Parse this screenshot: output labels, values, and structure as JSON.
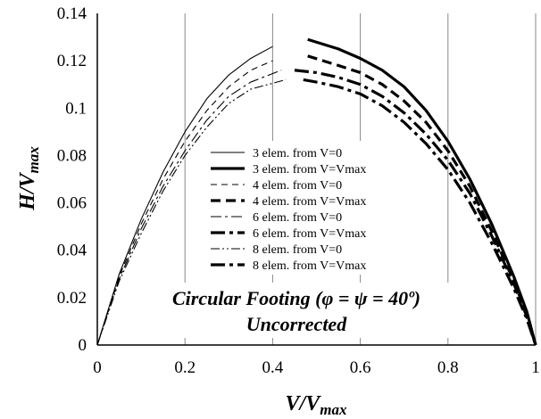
{
  "chart_data": {
    "type": "line",
    "xlabel": {
      "main": "V/V",
      "sub": "max"
    },
    "ylabel": {
      "main": "H/V",
      "sub": "max"
    },
    "xlim": [
      0,
      1
    ],
    "ylim": [
      0,
      0.14
    ],
    "x_ticks": [
      "0",
      "0.2",
      "0.4",
      "0.6",
      "0.8",
      "1"
    ],
    "y_ticks": [
      "0",
      "0.02",
      "0.04",
      "0.06",
      "0.08",
      "0.1",
      "0.12",
      "0.14"
    ],
    "grid": "vertical",
    "legend_position": "center",
    "annotations": [
      "Circular Footing (φ = ψ = 40º)",
      "Uncorrected"
    ],
    "series": [
      {
        "name": "3 elem. from V=0",
        "style": "solid",
        "weight": "thin",
        "x": [
          0,
          0.05,
          0.1,
          0.15,
          0.2,
          0.25,
          0.3,
          0.35,
          0.4
        ],
        "y": [
          0,
          0.03,
          0.053,
          0.073,
          0.09,
          0.104,
          0.114,
          0.121,
          0.126
        ]
      },
      {
        "name": "3 elem. from V=Vmax",
        "style": "solid",
        "weight": "thick",
        "x": [
          0.48,
          0.55,
          0.6,
          0.65,
          0.7,
          0.75,
          0.8,
          0.85,
          0.9,
          0.95,
          0.98,
          1.0
        ],
        "y": [
          0.129,
          0.125,
          0.121,
          0.116,
          0.109,
          0.099,
          0.086,
          0.07,
          0.051,
          0.029,
          0.014,
          0
        ]
      },
      {
        "name": "4 elem. from V=0",
        "style": "dashed",
        "weight": "thin",
        "x": [
          0,
          0.05,
          0.1,
          0.15,
          0.2,
          0.25,
          0.3,
          0.35,
          0.4
        ],
        "y": [
          0,
          0.029,
          0.051,
          0.07,
          0.086,
          0.099,
          0.109,
          0.116,
          0.12
        ]
      },
      {
        "name": "4 elem. from V=Vmax",
        "style": "dashed",
        "weight": "thick",
        "x": [
          0.48,
          0.55,
          0.6,
          0.65,
          0.7,
          0.75,
          0.8,
          0.85,
          0.9,
          0.95,
          0.98,
          1.0
        ],
        "y": [
          0.122,
          0.118,
          0.115,
          0.11,
          0.103,
          0.094,
          0.082,
          0.067,
          0.048,
          0.027,
          0.013,
          0
        ]
      },
      {
        "name": "6 elem. from V=0",
        "style": "dashdot",
        "weight": "thin",
        "x": [
          0,
          0.05,
          0.1,
          0.15,
          0.2,
          0.25,
          0.3,
          0.35,
          0.42
        ],
        "y": [
          0,
          0.028,
          0.049,
          0.067,
          0.082,
          0.095,
          0.105,
          0.111,
          0.116
        ]
      },
      {
        "name": "6 elem. from V=Vmax",
        "style": "dashdot",
        "weight": "thick",
        "x": [
          0.45,
          0.5,
          0.55,
          0.6,
          0.65,
          0.7,
          0.75,
          0.8,
          0.85,
          0.9,
          0.95,
          0.98,
          1.0
        ],
        "y": [
          0.116,
          0.115,
          0.113,
          0.11,
          0.105,
          0.098,
          0.089,
          0.078,
          0.064,
          0.046,
          0.026,
          0.012,
          0
        ]
      },
      {
        "name": "8 elem. from V=0",
        "style": "dashdotdot",
        "weight": "thin",
        "x": [
          0,
          0.05,
          0.1,
          0.15,
          0.2,
          0.25,
          0.3,
          0.35,
          0.43
        ],
        "y": [
          0,
          0.027,
          0.047,
          0.065,
          0.08,
          0.092,
          0.102,
          0.108,
          0.112
        ]
      },
      {
        "name": "8 elem. from V=Vmax",
        "style": "dashdot",
        "weight": "thick",
        "x": [
          0.47,
          0.5,
          0.55,
          0.6,
          0.65,
          0.7,
          0.75,
          0.8,
          0.85,
          0.9,
          0.95,
          0.98,
          1.0
        ],
        "y": [
          0.112,
          0.111,
          0.109,
          0.106,
          0.101,
          0.094,
          0.085,
          0.074,
          0.06,
          0.043,
          0.024,
          0.011,
          0
        ]
      }
    ]
  }
}
